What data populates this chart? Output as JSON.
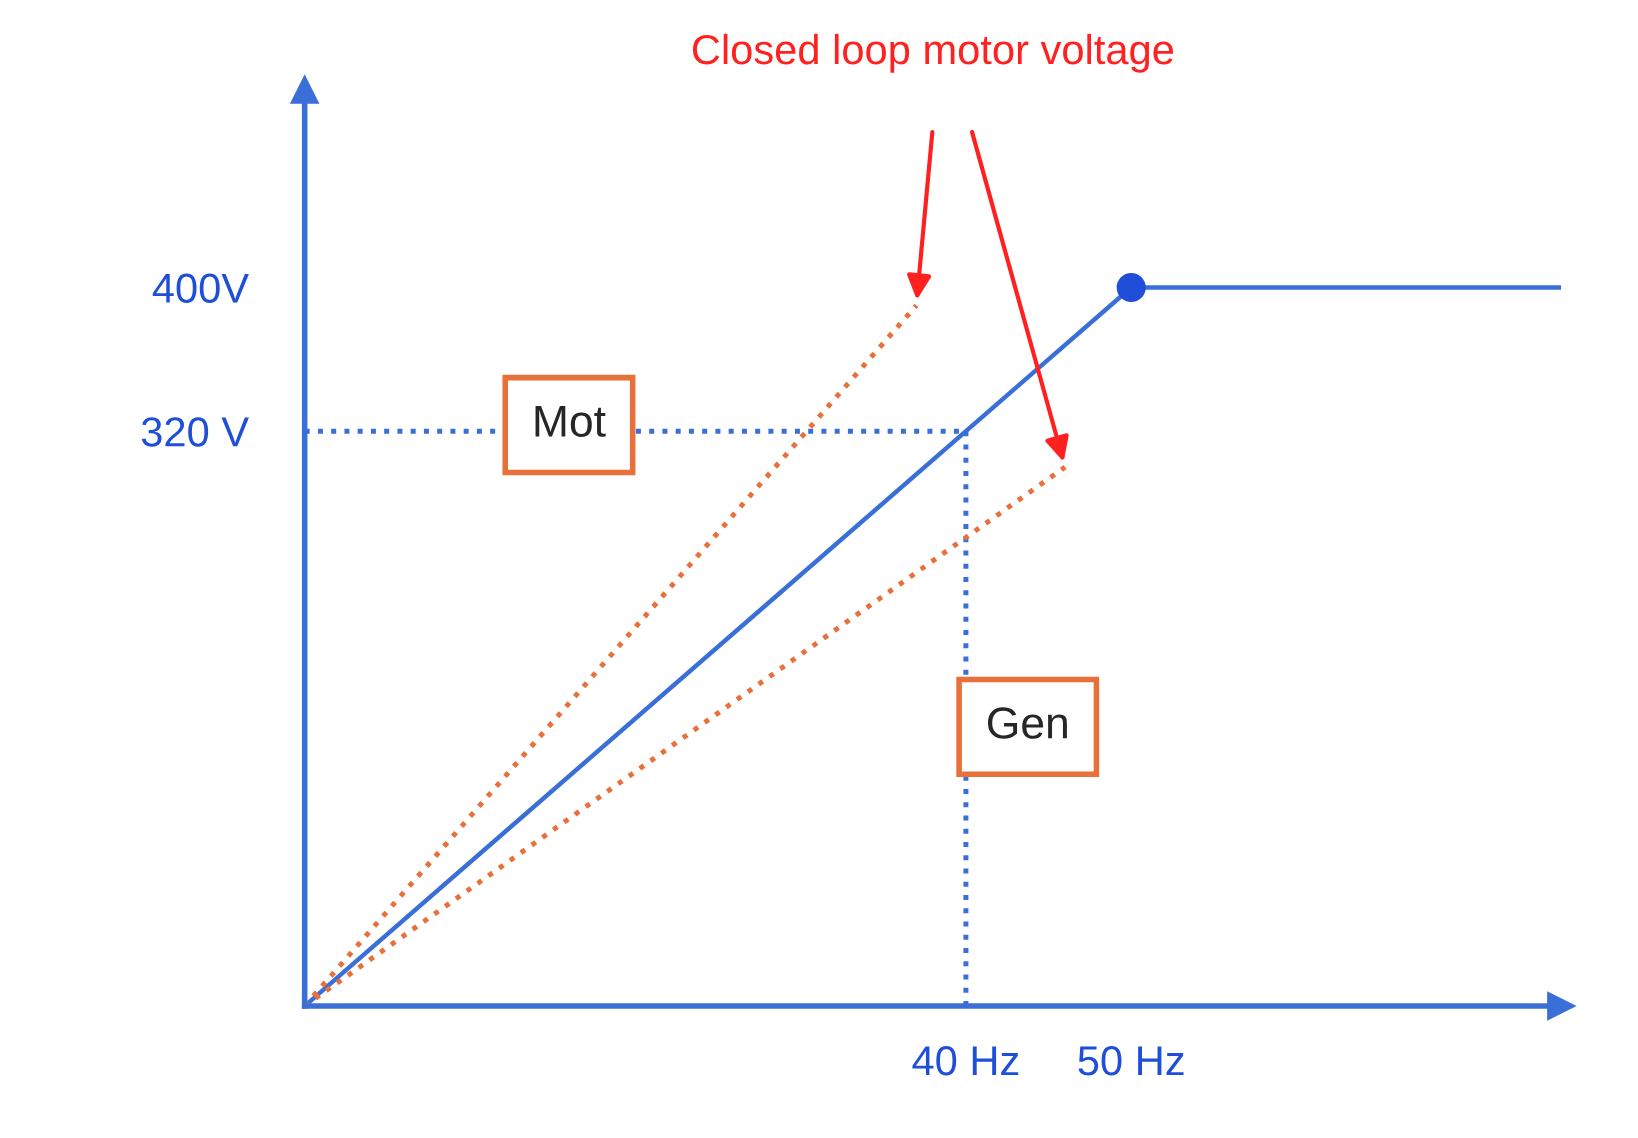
{
  "chart_data": {
    "type": "line",
    "xlim": [
      0,
      76
    ],
    "ylim": [
      0,
      510
    ],
    "xticks": [
      {
        "value": 40,
        "label": "40 Hz"
      },
      {
        "value": 50,
        "label": "50 Hz"
      }
    ],
    "yticks": [
      {
        "value": 320,
        "label": "320 V"
      },
      {
        "value": 400,
        "label": "400V"
      }
    ],
    "series": [
      {
        "color": "#3a6fd8",
        "line_style": "solid",
        "x": [
          0,
          50,
          76
        ],
        "values": [
          0,
          400,
          400
        ]
      },
      {
        "color": "#3a6fd8",
        "line_style": "dotted",
        "x": [
          40,
          40
        ],
        "values": [
          0,
          320
        ]
      },
      {
        "color": "#3a6fd8",
        "line_style": "dotted",
        "x": [
          0,
          40
        ],
        "values": [
          320,
          320
        ]
      },
      {
        "name": "Mot",
        "color": "#e8703a",
        "line_style": "dotted",
        "x": [
          0,
          37
        ],
        "values": [
          0,
          390
        ]
      },
      {
        "name": "Gen",
        "color": "#e8703a",
        "line_style": "dotted",
        "x": [
          0,
          46
        ],
        "values": [
          0,
          300
        ]
      },
      {
        "type": "scatter",
        "color": "#1f4fd8",
        "marker": "circle",
        "x": [
          50
        ],
        "values": [
          400
        ]
      }
    ],
    "annotations": [
      "Closed loop motor voltage"
    ]
  }
}
